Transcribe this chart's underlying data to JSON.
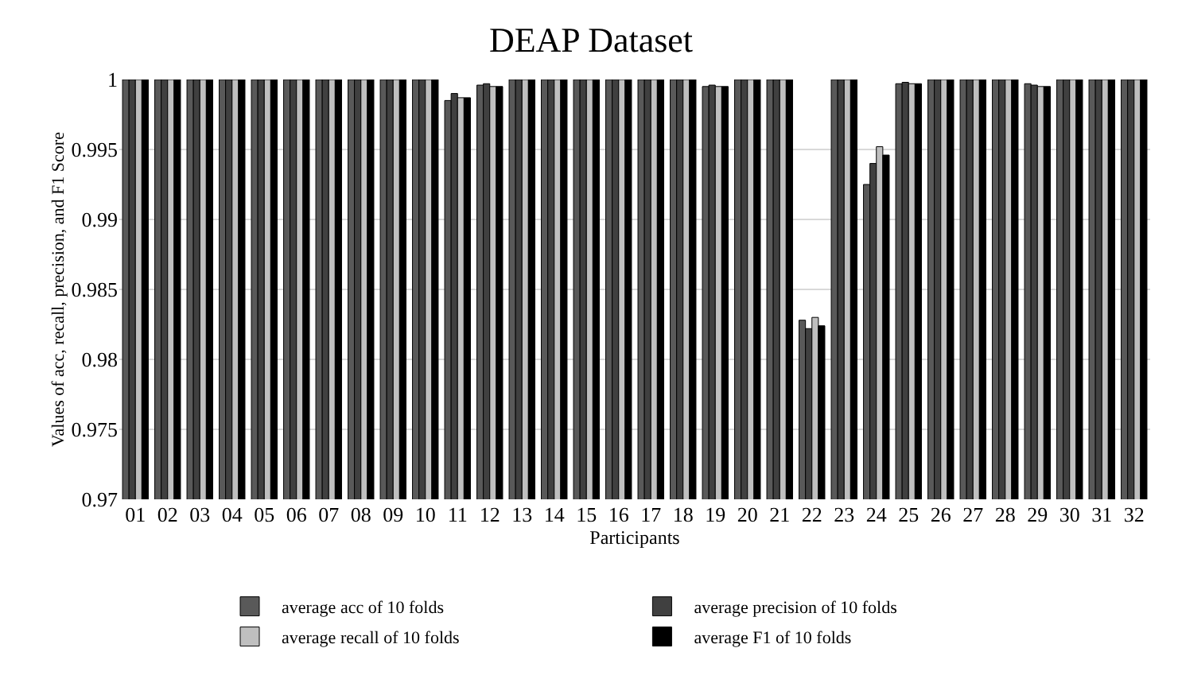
{
  "chart_data": {
    "type": "bar",
    "title": "DEAP Dataset",
    "xlabel": "Participants",
    "ylabel": "Values of acc, recall, precision, and F1 Score",
    "categories": [
      "01",
      "02",
      "03",
      "04",
      "05",
      "06",
      "07",
      "08",
      "09",
      "10",
      "11",
      "12",
      "13",
      "14",
      "15",
      "16",
      "17",
      "18",
      "19",
      "20",
      "21",
      "22",
      "23",
      "24",
      "25",
      "26",
      "27",
      "28",
      "29",
      "30",
      "31",
      "32"
    ],
    "series": [
      {
        "name": "average acc of 10 folds",
        "color": "#595959",
        "values": [
          1,
          1,
          1,
          1,
          1,
          1,
          1,
          1,
          1,
          1,
          0.9985,
          0.9996,
          1,
          1,
          1,
          1,
          1,
          1,
          0.9995,
          1,
          1,
          0.9828,
          1,
          0.9925,
          0.9997,
          1,
          1,
          1,
          0.9997,
          1,
          1,
          1
        ]
      },
      {
        "name": "average precision of 10 folds",
        "color": "#404040",
        "values": [
          1,
          1,
          1,
          1,
          1,
          1,
          1,
          1,
          1,
          1,
          0.999,
          0.9997,
          1,
          1,
          1,
          1,
          1,
          1,
          0.9996,
          1,
          1,
          0.9822,
          1,
          0.994,
          0.9998,
          1,
          1,
          1,
          0.9996,
          1,
          1,
          1
        ]
      },
      {
        "name": "average recall of 10 folds",
        "color": "#bfbfbf",
        "values": [
          1,
          1,
          1,
          1,
          1,
          1,
          1,
          1,
          1,
          1,
          0.9987,
          0.9995,
          1,
          1,
          1,
          1,
          1,
          1,
          0.9995,
          1,
          1,
          0.983,
          1,
          0.9952,
          0.9997,
          1,
          1,
          1,
          0.9995,
          1,
          1,
          1
        ]
      },
      {
        "name": "average F1 of 10 folds",
        "color": "#000000",
        "values": [
          1,
          1,
          1,
          1,
          1,
          1,
          1,
          1,
          1,
          1,
          0.9987,
          0.9995,
          1,
          1,
          1,
          1,
          1,
          1,
          0.9995,
          1,
          1,
          0.9824,
          1,
          0.9946,
          0.9997,
          1,
          1,
          1,
          0.9995,
          1,
          1,
          1
        ]
      }
    ],
    "ylim": [
      0.97,
      1
    ],
    "yticks": [
      0.97,
      0.975,
      0.98,
      0.985,
      0.99,
      0.995,
      1
    ],
    "grid": "y",
    "legend": "bottom"
  }
}
